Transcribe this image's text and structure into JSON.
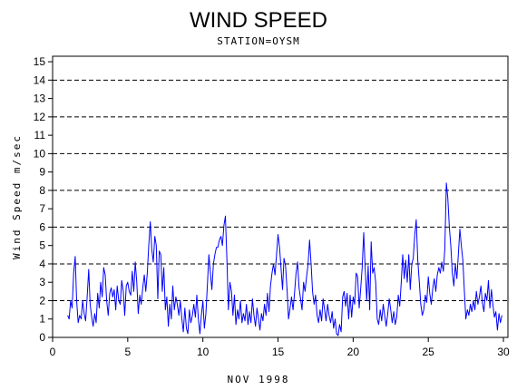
{
  "chart_data": {
    "type": "line",
    "title": "WIND SPEED",
    "subtitle": "STATION=OYSM",
    "xlabel": "NOV 1998",
    "ylabel": "Wind Speed m/sec",
    "xlim": [
      0,
      30.3
    ],
    "ylim": [
      0,
      15.3
    ],
    "x_ticks": [
      0,
      5,
      10,
      15,
      20,
      25,
      30
    ],
    "y_ticks": [
      0,
      1,
      2,
      3,
      4,
      5,
      6,
      7,
      8,
      9,
      10,
      11,
      12,
      13,
      14,
      15
    ],
    "grid_dashed_y": [
      0,
      2,
      4,
      6,
      8,
      10,
      12,
      14
    ],
    "series": [
      {
        "color": "#0000ff",
        "points": [
          [
            1.0,
            1.2
          ],
          [
            1.1,
            1.0
          ],
          [
            1.2,
            2.0
          ],
          [
            1.3,
            1.6
          ],
          [
            1.4,
            3.5
          ],
          [
            1.5,
            4.4
          ],
          [
            1.6,
            2.0
          ],
          [
            1.7,
            0.8
          ],
          [
            1.8,
            1.2
          ],
          [
            1.9,
            1.0
          ],
          [
            2.0,
            2.0
          ],
          [
            2.1,
            1.3
          ],
          [
            2.2,
            0.9
          ],
          [
            2.3,
            2.2
          ],
          [
            2.4,
            3.7
          ],
          [
            2.5,
            1.8
          ],
          [
            2.6,
            1.1
          ],
          [
            2.7,
            0.6
          ],
          [
            2.8,
            1.3
          ],
          [
            2.9,
            0.8
          ],
          [
            3.0,
            2.4
          ],
          [
            3.1,
            1.6
          ],
          [
            3.2,
            3.0
          ],
          [
            3.3,
            2.2
          ],
          [
            3.4,
            3.8
          ],
          [
            3.5,
            3.4
          ],
          [
            3.6,
            2.0
          ],
          [
            3.7,
            1.2
          ],
          [
            3.8,
            2.4
          ],
          [
            3.9,
            2.7
          ],
          [
            4.0,
            2.2
          ],
          [
            4.1,
            2.6
          ],
          [
            4.2,
            1.5
          ],
          [
            4.3,
            2.8
          ],
          [
            4.4,
            2.0
          ],
          [
            4.5,
            1.8
          ],
          [
            4.6,
            3.1
          ],
          [
            4.7,
            2.5
          ],
          [
            4.8,
            1.2
          ],
          [
            4.9,
            2.8
          ],
          [
            5.0,
            3.0
          ],
          [
            5.1,
            2.5
          ],
          [
            5.2,
            2.3
          ],
          [
            5.3,
            3.6
          ],
          [
            5.4,
            2.5
          ],
          [
            5.5,
            4.1
          ],
          [
            5.6,
            3.0
          ],
          [
            5.7,
            1.3
          ],
          [
            5.8,
            2.3
          ],
          [
            5.9,
            1.8
          ],
          [
            6.0,
            2.7
          ],
          [
            6.1,
            3.4
          ],
          [
            6.2,
            2.5
          ],
          [
            6.3,
            3.5
          ],
          [
            6.4,
            5.0
          ],
          [
            6.5,
            6.3
          ],
          [
            6.6,
            4.8
          ],
          [
            6.7,
            4.1
          ],
          [
            6.8,
            5.5
          ],
          [
            6.9,
            5.0
          ],
          [
            7.0,
            2.1
          ],
          [
            7.1,
            4.7
          ],
          [
            7.2,
            4.5
          ],
          [
            7.3,
            2.5
          ],
          [
            7.4,
            3.8
          ],
          [
            7.5,
            1.5
          ],
          [
            7.6,
            2.2
          ],
          [
            7.7,
            0.6
          ],
          [
            7.8,
            1.8
          ],
          [
            7.9,
            1.0
          ],
          [
            8.0,
            2.8
          ],
          [
            8.1,
            1.5
          ],
          [
            8.2,
            2.2
          ],
          [
            8.3,
            1.8
          ],
          [
            8.4,
            1.2
          ],
          [
            8.5,
            2.0
          ],
          [
            8.6,
            1.0
          ],
          [
            8.7,
            0.3
          ],
          [
            8.8,
            1.6
          ],
          [
            8.9,
            0.5
          ],
          [
            9.0,
            0.2
          ],
          [
            9.1,
            1.5
          ],
          [
            9.2,
            0.8
          ],
          [
            9.3,
            1.2
          ],
          [
            9.4,
            1.8
          ],
          [
            9.5,
            1.1
          ],
          [
            9.6,
            2.3
          ],
          [
            9.7,
            1.0
          ],
          [
            9.8,
            0.2
          ],
          [
            9.9,
            1.2
          ],
          [
            10.0,
            2.0
          ],
          [
            10.1,
            0.5
          ],
          [
            10.2,
            1.3
          ],
          [
            10.3,
            2.8
          ],
          [
            10.4,
            4.5
          ],
          [
            10.5,
            3.5
          ],
          [
            10.6,
            2.6
          ],
          [
            10.7,
            4.0
          ],
          [
            10.8,
            4.5
          ],
          [
            10.9,
            4.9
          ],
          [
            11.0,
            4.9
          ],
          [
            11.1,
            5.3
          ],
          [
            11.2,
            5.5
          ],
          [
            11.3,
            5.0
          ],
          [
            11.4,
            6.1
          ],
          [
            11.5,
            6.6
          ],
          [
            11.6,
            4.2
          ],
          [
            11.7,
            1.5
          ],
          [
            11.8,
            3.0
          ],
          [
            11.9,
            2.5
          ],
          [
            12.0,
            1.2
          ],
          [
            12.1,
            2.3
          ],
          [
            12.2,
            0.7
          ],
          [
            12.3,
            1.5
          ],
          [
            12.4,
            1.0
          ],
          [
            12.5,
            2.0
          ],
          [
            12.6,
            0.8
          ],
          [
            12.7,
            1.3
          ],
          [
            12.8,
            0.9
          ],
          [
            12.9,
            1.8
          ],
          [
            13.0,
            0.7
          ],
          [
            13.1,
            1.4
          ],
          [
            13.2,
            0.8
          ],
          [
            13.3,
            2.1
          ],
          [
            13.4,
            1.2
          ],
          [
            13.5,
            0.6
          ],
          [
            13.6,
            1.6
          ],
          [
            13.7,
            1.0
          ],
          [
            13.8,
            0.4
          ],
          [
            13.9,
            1.3
          ],
          [
            14.0,
            0.9
          ],
          [
            14.1,
            1.8
          ],
          [
            14.2,
            1.2
          ],
          [
            14.3,
            2.4
          ],
          [
            14.4,
            1.4
          ],
          [
            14.5,
            2.8
          ],
          [
            14.6,
            3.5
          ],
          [
            14.7,
            4.0
          ],
          [
            14.8,
            3.4
          ],
          [
            14.9,
            4.5
          ],
          [
            15.0,
            5.6
          ],
          [
            15.1,
            4.9
          ],
          [
            15.2,
            3.8
          ],
          [
            15.3,
            2.6
          ],
          [
            15.4,
            4.3
          ],
          [
            15.5,
            3.9
          ],
          [
            15.6,
            2.6
          ],
          [
            15.7,
            1.0
          ],
          [
            15.8,
            1.6
          ],
          [
            15.9,
            2.2
          ],
          [
            16.0,
            1.5
          ],
          [
            16.1,
            2.4
          ],
          [
            16.2,
            3.5
          ],
          [
            16.3,
            4.1
          ],
          [
            16.4,
            2.7
          ],
          [
            16.5,
            2.1
          ],
          [
            16.6,
            1.5
          ],
          [
            16.7,
            3.0
          ],
          [
            16.8,
            2.5
          ],
          [
            16.9,
            3.3
          ],
          [
            17.0,
            4.0
          ],
          [
            17.1,
            5.3
          ],
          [
            17.2,
            4.0
          ],
          [
            17.3,
            2.5
          ],
          [
            17.4,
            1.8
          ],
          [
            17.5,
            2.3
          ],
          [
            17.6,
            1.2
          ],
          [
            17.7,
            0.8
          ],
          [
            17.8,
            1.5
          ],
          [
            17.9,
            0.9
          ],
          [
            18.0,
            2.1
          ],
          [
            18.1,
            1.5
          ],
          [
            18.2,
            0.9
          ],
          [
            18.3,
            1.8
          ],
          [
            18.4,
            1.2
          ],
          [
            18.5,
            0.8
          ],
          [
            18.6,
            1.4
          ],
          [
            18.7,
            0.5
          ],
          [
            18.8,
            1.0
          ],
          [
            18.9,
            0.2
          ],
          [
            19.0,
            0.1
          ],
          [
            19.1,
            0.7
          ],
          [
            19.2,
            0.3
          ],
          [
            19.3,
            2.2
          ],
          [
            19.4,
            2.5
          ],
          [
            19.5,
            1.7
          ],
          [
            19.6,
            2.4
          ],
          [
            19.7,
            1.0
          ],
          [
            19.8,
            2.3
          ],
          [
            19.9,
            1.1
          ],
          [
            20.0,
            2.2
          ],
          [
            20.1,
            1.8
          ],
          [
            20.2,
            3.5
          ],
          [
            20.3,
            3.3
          ],
          [
            20.4,
            1.6
          ],
          [
            20.5,
            2.6
          ],
          [
            20.6,
            3.8
          ],
          [
            20.7,
            5.7
          ],
          [
            20.8,
            3.8
          ],
          [
            20.9,
            2.0
          ],
          [
            21.0,
            3.9
          ],
          [
            21.1,
            1.5
          ],
          [
            21.2,
            5.2
          ],
          [
            21.3,
            3.5
          ],
          [
            21.4,
            3.8
          ],
          [
            21.5,
            3.0
          ],
          [
            21.6,
            1.0
          ],
          [
            21.7,
            0.7
          ],
          [
            21.8,
            1.5
          ],
          [
            21.9,
            0.9
          ],
          [
            22.0,
            1.8
          ],
          [
            22.1,
            1.2
          ],
          [
            22.2,
            0.6
          ],
          [
            22.3,
            1.3
          ],
          [
            22.4,
            2.1
          ],
          [
            22.5,
            1.5
          ],
          [
            22.6,
            0.8
          ],
          [
            22.7,
            1.4
          ],
          [
            22.8,
            0.7
          ],
          [
            22.9,
            1.1
          ],
          [
            23.0,
            2.3
          ],
          [
            23.1,
            1.7
          ],
          [
            23.2,
            3.0
          ],
          [
            23.3,
            4.5
          ],
          [
            23.4,
            3.2
          ],
          [
            23.5,
            4.2
          ],
          [
            23.6,
            3.0
          ],
          [
            23.7,
            4.5
          ],
          [
            23.8,
            2.6
          ],
          [
            23.9,
            4.0
          ],
          [
            24.0,
            4.3
          ],
          [
            24.1,
            5.6
          ],
          [
            24.2,
            6.4
          ],
          [
            24.3,
            4.2
          ],
          [
            24.4,
            3.0
          ],
          [
            24.5,
            1.8
          ],
          [
            24.6,
            1.2
          ],
          [
            24.7,
            1.5
          ],
          [
            24.8,
            2.3
          ],
          [
            24.9,
            1.9
          ],
          [
            25.0,
            3.3
          ],
          [
            25.1,
            2.4
          ],
          [
            25.2,
            1.8
          ],
          [
            25.3,
            2.7
          ],
          [
            25.4,
            3.2
          ],
          [
            25.5,
            2.5
          ],
          [
            25.6,
            3.4
          ],
          [
            25.7,
            3.8
          ],
          [
            25.8,
            3.5
          ],
          [
            25.9,
            4.1
          ],
          [
            26.0,
            3.6
          ],
          [
            26.1,
            4.8
          ],
          [
            26.2,
            8.4
          ],
          [
            26.3,
            7.6
          ],
          [
            26.4,
            6.0
          ],
          [
            26.5,
            5.0
          ],
          [
            26.6,
            3.5
          ],
          [
            26.7,
            2.8
          ],
          [
            26.8,
            4.0
          ],
          [
            26.9,
            3.2
          ],
          [
            27.0,
            4.5
          ],
          [
            27.1,
            5.9
          ],
          [
            27.2,
            5.0
          ],
          [
            27.3,
            4.2
          ],
          [
            27.4,
            2.5
          ],
          [
            27.5,
            1.0
          ],
          [
            27.6,
            1.5
          ],
          [
            27.7,
            1.2
          ],
          [
            27.8,
            1.8
          ],
          [
            27.9,
            1.4
          ],
          [
            28.0,
            2.0
          ],
          [
            28.1,
            1.5
          ],
          [
            28.2,
            2.5
          ],
          [
            28.3,
            1.8
          ],
          [
            28.4,
            2.2
          ],
          [
            28.5,
            2.8
          ],
          [
            28.6,
            1.9
          ],
          [
            28.7,
            1.4
          ],
          [
            28.8,
            2.4
          ],
          [
            28.9,
            2.0
          ],
          [
            29.0,
            3.1
          ],
          [
            29.1,
            1.6
          ],
          [
            29.2,
            2.6
          ],
          [
            29.3,
            1.8
          ],
          [
            29.4,
            1.1
          ],
          [
            29.5,
            1.4
          ],
          [
            29.6,
            0.4
          ],
          [
            29.7,
            1.3
          ],
          [
            29.8,
            0.8
          ],
          [
            29.9,
            1.2
          ]
        ]
      }
    ]
  }
}
